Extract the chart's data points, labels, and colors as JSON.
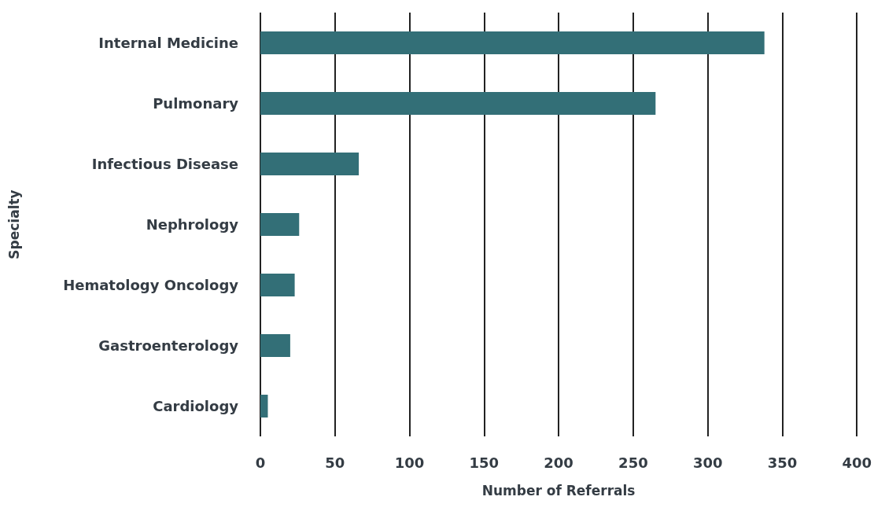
{
  "chart_data": {
    "type": "bar",
    "orientation": "horizontal",
    "xlabel": "Number of Referrals",
    "ylabel": "Specialty",
    "categories": [
      "Internal Medicine",
      "Pulmonary",
      "Infectious Disease",
      "Nephrology",
      "Hematology Oncology",
      "Gastroenterology",
      "Cardiology"
    ],
    "values": [
      338,
      265,
      66,
      26,
      23,
      20,
      5
    ],
    "color": "#336f77",
    "xlim": [
      0,
      400
    ],
    "xticks": [
      0,
      50,
      100,
      150,
      200,
      250,
      300,
      350,
      400
    ],
    "grid": "x"
  }
}
